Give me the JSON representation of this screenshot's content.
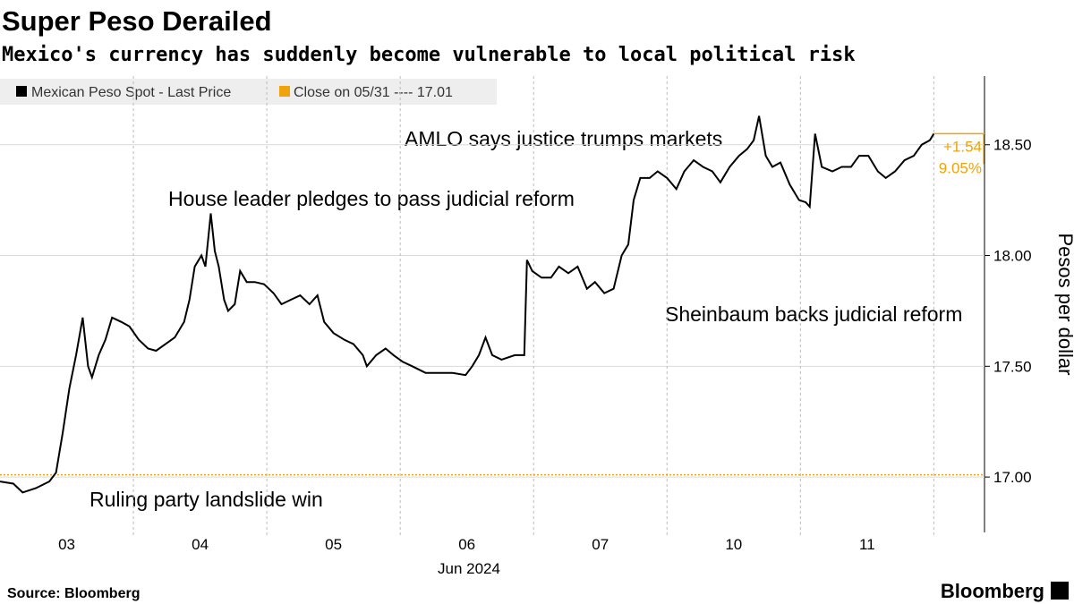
{
  "chart_data": {
    "type": "line",
    "title": "Super Peso Derailed",
    "subtitle": "Mexico's currency has suddenly become vulnerable to local political risk",
    "y_label": "Pesos per dollar",
    "x_label": "Jun 2024",
    "source": "Source: Bloomberg",
    "brand": "Bloomberg",
    "xlim": [
      0,
      7.38
    ],
    "xticks": [
      {
        "value": 0.5,
        "label": "03"
      },
      {
        "value": 1.5,
        "label": "04"
      },
      {
        "value": 2.5,
        "label": "05"
      },
      {
        "value": 3.5,
        "label": "06"
      },
      {
        "value": 4.5,
        "label": "07"
      },
      {
        "value": 5.5,
        "label": "10"
      },
      {
        "value": 6.5,
        "label": "11"
      }
    ],
    "ylim": [
      16.75,
      18.81
    ],
    "yticks": [
      {
        "value": 17,
        "label": "17.00"
      },
      {
        "value": 17.5,
        "label": "17.50"
      },
      {
        "value": 18,
        "label": "18.00"
      },
      {
        "value": 18.5,
        "label": "18.50"
      }
    ],
    "grid": true,
    "reference": {
      "value": 17.01,
      "label": "Close on 05/31 ---- 17.01",
      "color": "#f0a30a"
    },
    "change_labels": [
      "+1.54",
      "9.05%"
    ],
    "annotations": [
      "AMLO says justice trumps markets",
      "House leader pledges to pass judicial reform",
      "Sheinbaum backs judicial reform",
      "Ruling party landslide win"
    ],
    "series": [
      {
        "name": "Mexican Peso Spot - Last Price",
        "color": "#000000",
        "x": [
          0,
          0.1,
          0.17,
          0.27,
          0.37,
          0.42,
          0.47,
          0.52,
          0.57,
          0.62,
          0.66,
          0.69,
          0.74,
          0.79,
          0.84,
          0.91,
          0.97,
          1.04,
          1.11,
          1.17,
          1.24,
          1.31,
          1.38,
          1.42,
          1.46,
          1.51,
          1.54,
          1.58,
          1.61,
          1.64,
          1.68,
          1.71,
          1.76,
          1.8,
          1.85,
          1.91,
          1.98,
          2.05,
          2.11,
          2.18,
          2.25,
          2.32,
          2.38,
          2.43,
          2.5,
          2.58,
          2.65,
          2.72,
          2.75,
          2.82,
          2.89,
          2.95,
          3.02,
          3.09,
          3.19,
          3.29,
          3.39,
          3.49,
          3.54,
          3.59,
          3.64,
          3.69,
          3.76,
          3.86,
          3.93,
          3.95,
          3.99,
          4.06,
          4.13,
          4.19,
          4.26,
          4.33,
          4.4,
          4.46,
          4.53,
          4.6,
          4.66,
          4.71,
          4.75,
          4.8,
          4.87,
          4.93,
          5.0,
          5.07,
          5.13,
          5.2,
          5.27,
          5.34,
          5.4,
          5.47,
          5.54,
          5.6,
          5.65,
          5.69,
          5.74,
          5.79,
          5.85,
          5.92,
          5.99,
          6.04,
          6.07,
          6.11,
          6.16,
          6.24,
          6.31,
          6.38,
          6.44,
          6.51,
          6.58,
          6.64,
          6.71,
          6.78,
          6.85,
          6.91,
          6.97,
          7.0
        ],
        "values": [
          16.98,
          16.97,
          16.93,
          16.95,
          16.98,
          17.02,
          17.2,
          17.4,
          17.55,
          17.72,
          17.5,
          17.45,
          17.55,
          17.62,
          17.72,
          17.7,
          17.68,
          17.62,
          17.58,
          17.57,
          17.6,
          17.63,
          17.7,
          17.8,
          17.95,
          18.0,
          17.95,
          18.19,
          18.02,
          17.95,
          17.8,
          17.75,
          17.78,
          17.93,
          17.88,
          17.88,
          17.87,
          17.83,
          17.78,
          17.8,
          17.82,
          17.78,
          17.82,
          17.7,
          17.65,
          17.62,
          17.6,
          17.55,
          17.5,
          17.55,
          17.58,
          17.55,
          17.52,
          17.5,
          17.47,
          17.47,
          17.47,
          17.46,
          17.5,
          17.55,
          17.63,
          17.55,
          17.53,
          17.55,
          17.55,
          17.98,
          17.93,
          17.9,
          17.9,
          17.95,
          17.92,
          17.95,
          17.85,
          17.88,
          17.83,
          17.85,
          18.0,
          18.05,
          18.25,
          18.35,
          18.35,
          18.38,
          18.35,
          18.3,
          18.38,
          18.43,
          18.4,
          18.38,
          18.33,
          18.4,
          18.45,
          18.48,
          18.52,
          18.63,
          18.45,
          18.4,
          18.42,
          18.32,
          18.25,
          18.24,
          18.22,
          18.55,
          18.4,
          18.38,
          18.4,
          18.4,
          18.45,
          18.45,
          18.38,
          18.35,
          18.38,
          18.43,
          18.45,
          18.5,
          18.52,
          18.55
        ]
      }
    ]
  }
}
